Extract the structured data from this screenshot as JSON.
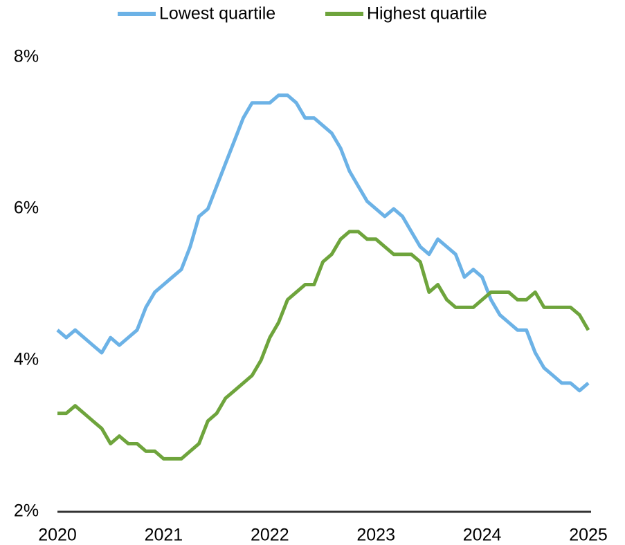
{
  "chart_data": {
    "type": "line",
    "x": [
      2020,
      2020.083,
      2020.167,
      2020.25,
      2020.333,
      2020.417,
      2020.5,
      2020.583,
      2020.667,
      2020.75,
      2020.833,
      2020.917,
      2021,
      2021.083,
      2021.167,
      2021.25,
      2021.333,
      2021.417,
      2021.5,
      2021.583,
      2021.667,
      2021.75,
      2021.833,
      2021.917,
      2022,
      2022.083,
      2022.167,
      2022.25,
      2022.333,
      2022.417,
      2022.5,
      2022.583,
      2022.667,
      2022.75,
      2022.833,
      2022.917,
      2023,
      2023.083,
      2023.167,
      2023.25,
      2023.333,
      2023.417,
      2023.5,
      2023.583,
      2023.667,
      2023.75,
      2023.833,
      2023.917,
      2024,
      2024.083,
      2024.167,
      2024.25,
      2024.333,
      2024.417,
      2024.5,
      2024.583,
      2024.667,
      2024.75,
      2024.833,
      2024.917,
      2025
    ],
    "series": [
      {
        "name": "Lowest quartile",
        "color": "#6cb2e6",
        "values": [
          4.4,
          4.3,
          4.4,
          4.3,
          4.2,
          4.1,
          4.3,
          4.2,
          4.3,
          4.4,
          4.7,
          4.9,
          5.0,
          5.1,
          5.2,
          5.5,
          5.9,
          6.0,
          6.3,
          6.6,
          6.9,
          7.2,
          7.4,
          7.4,
          7.4,
          7.5,
          7.5,
          7.4,
          7.2,
          7.2,
          7.1,
          7.0,
          6.8,
          6.5,
          6.3,
          6.1,
          6.0,
          5.9,
          6.0,
          5.9,
          5.7,
          5.5,
          5.4,
          5.6,
          5.5,
          5.4,
          5.1,
          5.2,
          5.1,
          4.8,
          4.6,
          4.5,
          4.4,
          4.4,
          4.1,
          3.9,
          3.8,
          3.7,
          3.7,
          3.6,
          3.7
        ]
      },
      {
        "name": "Highest quartile",
        "color": "#6ea43c",
        "values": [
          3.3,
          3.3,
          3.4,
          3.3,
          3.2,
          3.1,
          2.9,
          3.0,
          2.9,
          2.9,
          2.8,
          2.8,
          2.7,
          2.7,
          2.7,
          2.8,
          2.9,
          3.2,
          3.3,
          3.5,
          3.6,
          3.7,
          3.8,
          4.0,
          4.3,
          4.5,
          4.8,
          4.9,
          5.0,
          5.0,
          5.3,
          5.4,
          5.6,
          5.7,
          5.7,
          5.6,
          5.6,
          5.5,
          5.4,
          5.4,
          5.4,
          5.3,
          4.9,
          5.0,
          4.8,
          4.7,
          4.7,
          4.7,
          4.8,
          4.9,
          4.9,
          4.9,
          4.8,
          4.8,
          4.9,
          4.7,
          4.7,
          4.7,
          4.7,
          4.6,
          4.4
        ]
      }
    ],
    "xlim": [
      2020,
      2025
    ],
    "xticks": [
      2020,
      2021,
      2022,
      2023,
      2024,
      2025
    ],
    "ylim": [
      2,
      8
    ],
    "yticks": [
      {
        "value": 2,
        "label": "2%"
      },
      {
        "value": 4,
        "label": "4%"
      },
      {
        "value": 6,
        "label": "6%"
      },
      {
        "value": 8,
        "label": "8%"
      }
    ],
    "grid": false,
    "legend": "top"
  }
}
